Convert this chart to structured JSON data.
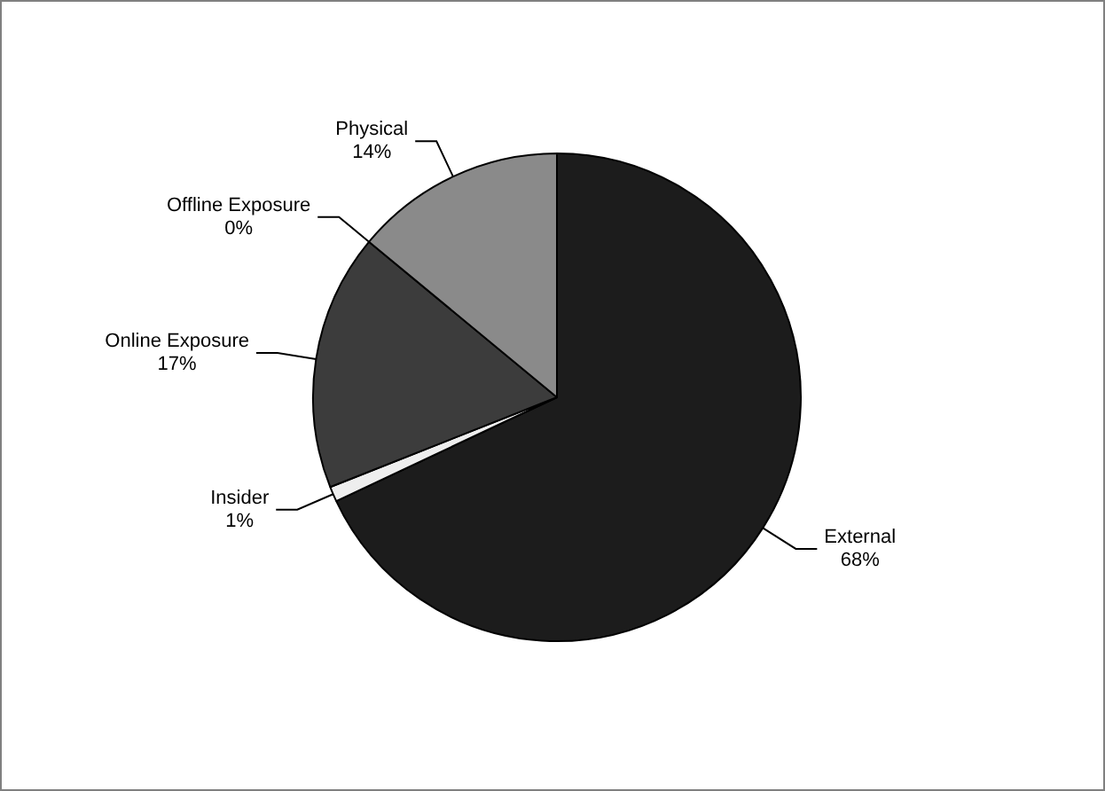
{
  "chart_data": {
    "type": "pie",
    "categories": [
      "External",
      "Insider",
      "Online Exposure",
      "Offline Exposure",
      "Physical"
    ],
    "values": [
      68,
      1,
      17,
      0,
      14
    ],
    "value_labels": [
      "68%",
      "1%",
      "17%",
      "0%",
      "14%"
    ],
    "colors": [
      "#1c1c1c",
      "#eeeeee",
      "#3c3c3c",
      "#666666",
      "#8a8a8a"
    ]
  }
}
